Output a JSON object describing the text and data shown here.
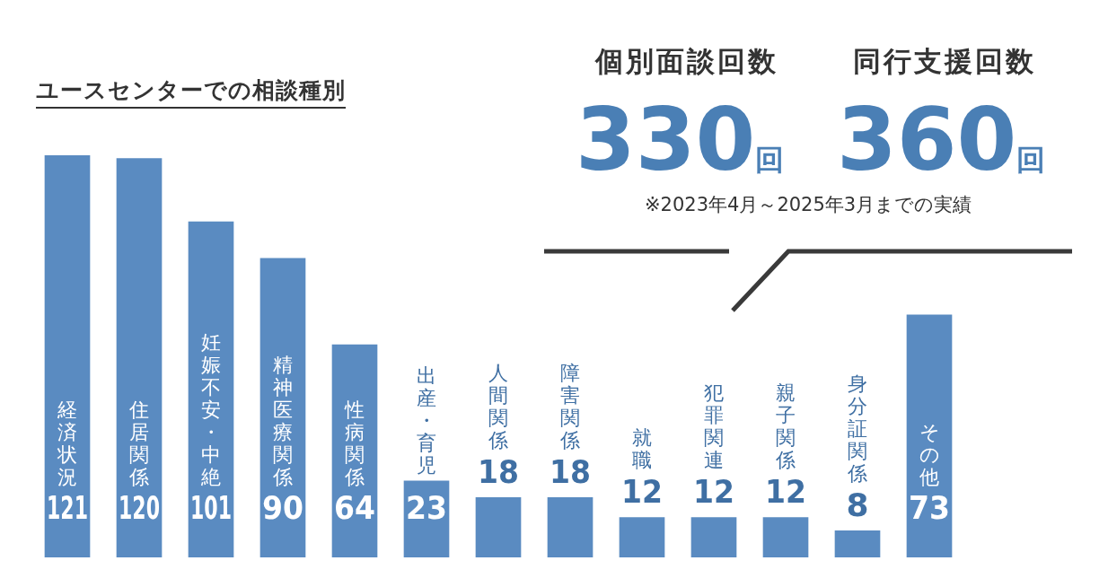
{
  "chart_data": {
    "type": "bar",
    "title": "ユースセンターでの相談種別",
    "categories": [
      "経済状況",
      "住居関係",
      "妊娠不安・中絶",
      "精神医療関係",
      "性病関係",
      "出産・育児",
      "人間関係",
      "障害関係",
      "就職",
      "犯罪関連",
      "親子関係",
      "身分証関係",
      "その他"
    ],
    "values": [
      121,
      120,
      101,
      90,
      64,
      23,
      18,
      18,
      12,
      12,
      12,
      8,
      73
    ],
    "color": "#5a8bc1",
    "data_labels": true,
    "annotations": [
      "個別面談回数",
      "330回",
      "同行支援回数",
      "360回",
      "※2023年4月～2025年3月までの実績"
    ]
  }
}
